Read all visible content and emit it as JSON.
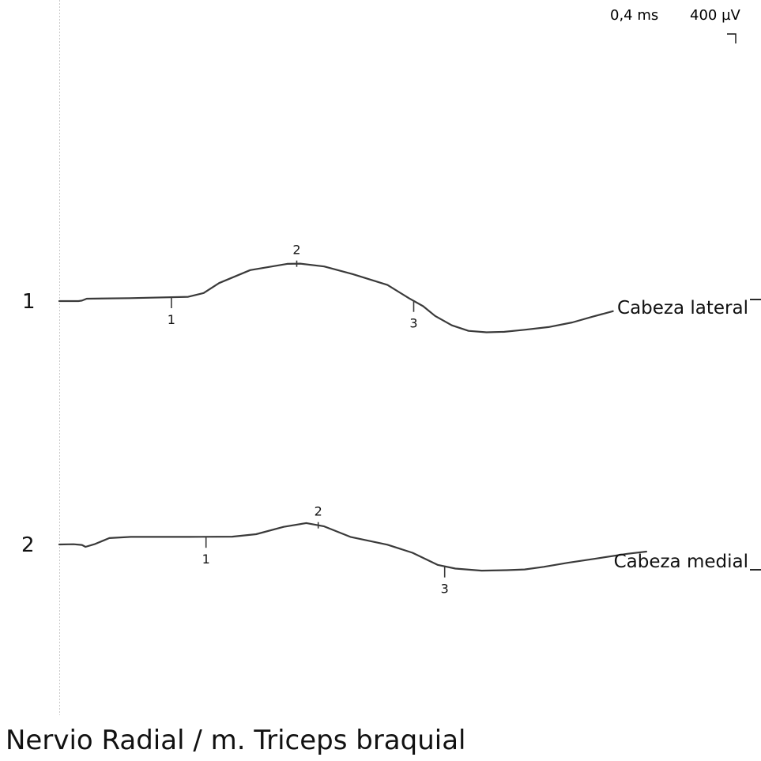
{
  "colors": {
    "trace": "#3a3a3a",
    "text": "#111111",
    "baseline_marker": "#c8c8c8"
  },
  "scale": {
    "time": "0,4 ms",
    "amplitude": "400 µV"
  },
  "title": "Nervio Radial / m. Triceps braquial",
  "chart_data": {
    "type": "line",
    "x_unit": "ms",
    "y_unit": "µV",
    "time_per_division_ms": 0.4,
    "amplitude_per_division_uv": 400,
    "series": [
      {
        "number": "1",
        "name": "Cabeza lateral",
        "points": [
          [
            0.0,
            0
          ],
          [
            0.16,
            0
          ],
          [
            0.19,
            16
          ],
          [
            0.23,
            80
          ],
          [
            0.59,
            100
          ],
          [
            1.08,
            145
          ],
          [
            1.21,
            273
          ],
          [
            1.34,
            608
          ],
          [
            1.6,
            1045
          ],
          [
            1.91,
            1255
          ],
          [
            2.02,
            1265
          ],
          [
            2.22,
            1169
          ],
          [
            2.46,
            909
          ],
          [
            2.75,
            543
          ],
          [
            2.93,
            100
          ],
          [
            3.05,
            -173
          ],
          [
            3.15,
            -502
          ],
          [
            3.29,
            -819
          ],
          [
            3.43,
            -1005
          ],
          [
            3.58,
            -1053
          ],
          [
            3.73,
            -1037
          ],
          [
            3.9,
            -968
          ],
          [
            4.1,
            -876
          ],
          [
            4.3,
            -719
          ],
          [
            4.47,
            -526
          ],
          [
            4.64,
            -342
          ]
        ],
        "markers": [
          {
            "label": "1",
            "x": 0.94
          },
          {
            "label": "2",
            "x": 1.99
          },
          {
            "label": "3",
            "x": 2.97
          }
        ]
      },
      {
        "number": "2",
        "name": "Cabeza medial",
        "points": [
          [
            0.0,
            0
          ],
          [
            0.12,
            8
          ],
          [
            0.19,
            -16
          ],
          [
            0.22,
            -80
          ],
          [
            0.3,
            16
          ],
          [
            0.42,
            216
          ],
          [
            0.6,
            257
          ],
          [
            1.08,
            257
          ],
          [
            1.45,
            265
          ],
          [
            1.65,
            346
          ],
          [
            1.88,
            594
          ],
          [
            2.07,
            722
          ],
          [
            2.22,
            610
          ],
          [
            2.44,
            257
          ],
          [
            2.75,
            -8
          ],
          [
            2.96,
            -281
          ],
          [
            3.17,
            -687
          ],
          [
            3.32,
            -814
          ],
          [
            3.54,
            -883
          ],
          [
            3.75,
            -867
          ],
          [
            3.9,
            -843
          ],
          [
            4.06,
            -755
          ],
          [
            4.26,
            -619
          ],
          [
            4.5,
            -474
          ],
          [
            4.76,
            -314
          ],
          [
            4.92,
            -241
          ]
        ],
        "markers": [
          {
            "label": "1",
            "x": 1.23
          },
          {
            "label": "2",
            "x": 2.17
          },
          {
            "label": "3",
            "x": 3.23
          }
        ]
      }
    ]
  }
}
